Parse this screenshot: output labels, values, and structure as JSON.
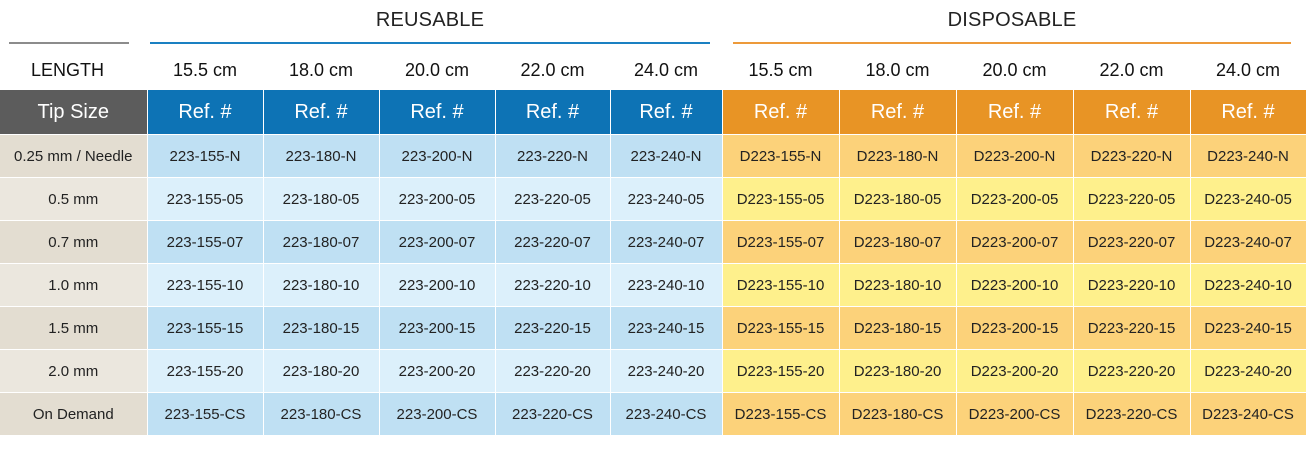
{
  "groups": {
    "reusable": "REUSABLE",
    "disposable": "DISPOSABLE"
  },
  "colors": {
    "reusable_accent": "#0d73b5",
    "disposable_accent": "#e89425",
    "tip_header": "#5c5c5c"
  },
  "length_label": "LENGTH",
  "lengths": [
    "15.5 cm",
    "18.0 cm",
    "20.0 cm",
    "22.0 cm",
    "24.0 cm",
    "15.5 cm",
    "18.0 cm",
    "20.0 cm",
    "22.0 cm",
    "24.0 cm"
  ],
  "tip_header": "Tip Size",
  "ref_header": "Ref. #",
  "rows": [
    {
      "tip": "0.25 mm / Needle",
      "refs": [
        "223-155-N",
        "223-180-N",
        "223-200-N",
        "223-220-N",
        "223-240-N",
        "D223-155-N",
        "D223-180-N",
        "D223-200-N",
        "D223-220-N",
        "D223-240-N"
      ]
    },
    {
      "tip": "0.5 mm",
      "refs": [
        "223-155-05",
        "223-180-05",
        "223-200-05",
        "223-220-05",
        "223-240-05",
        "D223-155-05",
        "D223-180-05",
        "D223-200-05",
        "D223-220-05",
        "D223-240-05"
      ]
    },
    {
      "tip": "0.7 mm",
      "refs": [
        "223-155-07",
        "223-180-07",
        "223-200-07",
        "223-220-07",
        "223-240-07",
        "D223-155-07",
        "D223-180-07",
        "D223-200-07",
        "D223-220-07",
        "D223-240-07"
      ]
    },
    {
      "tip": "1.0 mm",
      "refs": [
        "223-155-10",
        "223-180-10",
        "223-200-10",
        "223-220-10",
        "223-240-10",
        "D223-155-10",
        "D223-180-10",
        "D223-200-10",
        "D223-220-10",
        "D223-240-10"
      ]
    },
    {
      "tip": "1.5 mm",
      "refs": [
        "223-155-15",
        "223-180-15",
        "223-200-15",
        "223-220-15",
        "223-240-15",
        "D223-155-15",
        "D223-180-15",
        "D223-200-15",
        "D223-220-15",
        "D223-240-15"
      ]
    },
    {
      "tip": "2.0 mm",
      "refs": [
        "223-155-20",
        "223-180-20",
        "223-200-20",
        "223-220-20",
        "223-240-20",
        "D223-155-20",
        "D223-180-20",
        "D223-200-20",
        "D223-220-20",
        "D223-240-20"
      ]
    },
    {
      "tip": "On Demand",
      "refs": [
        "223-155-CS",
        "223-180-CS",
        "223-200-CS",
        "223-220-CS",
        "223-240-CS",
        "D223-155-CS",
        "D223-180-CS",
        "D223-200-CS",
        "D223-220-CS",
        "D223-240-CS"
      ]
    }
  ]
}
